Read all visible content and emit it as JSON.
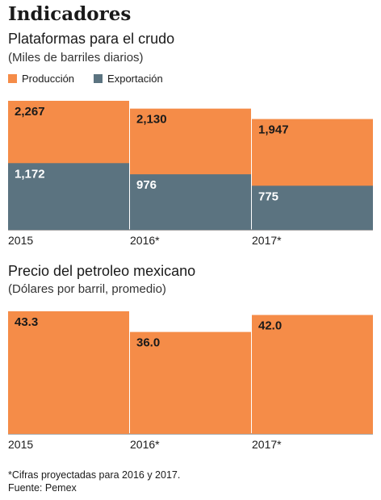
{
  "header": {
    "title": "Indicadores"
  },
  "chart_data": [
    {
      "type": "bar",
      "title": "Plataformas  para el crudo",
      "subtitle": "(Miles de barriles diarios)",
      "categories": [
        "2015",
        "2016*",
        "2017*"
      ],
      "series": [
        {
          "name": "Producción",
          "values": [
            2267,
            2130,
            1947
          ],
          "color": "#F58C48",
          "labels": [
            "2,267",
            "2,130",
            "1,947"
          ]
        },
        {
          "name": "Exportación",
          "values": [
            1172,
            976,
            775
          ],
          "color": "#5B7380",
          "labels": [
            "1,172",
            "976",
            "775"
          ]
        }
      ],
      "stacking": "overlay",
      "ylim": [
        0,
        2267
      ],
      "legend": "top-left",
      "grid": false
    },
    {
      "type": "bar",
      "title": "Precio del petroleo mexicano",
      "subtitle": "(Dólares por barril, promedio)",
      "categories": [
        "2015",
        "2016*",
        "2017*"
      ],
      "series": [
        {
          "values": [
            43.3,
            36.0,
            42.0
          ],
          "color": "#F58C48",
          "labels": [
            "43.3",
            "36.0",
            "42.0"
          ]
        }
      ],
      "ylim": [
        0,
        43.3
      ],
      "grid": false
    }
  ],
  "footnote": {
    "line1": "*Cifras proyectadas para 2016 y 2017.",
    "line2": "Fuente: Pemex"
  }
}
